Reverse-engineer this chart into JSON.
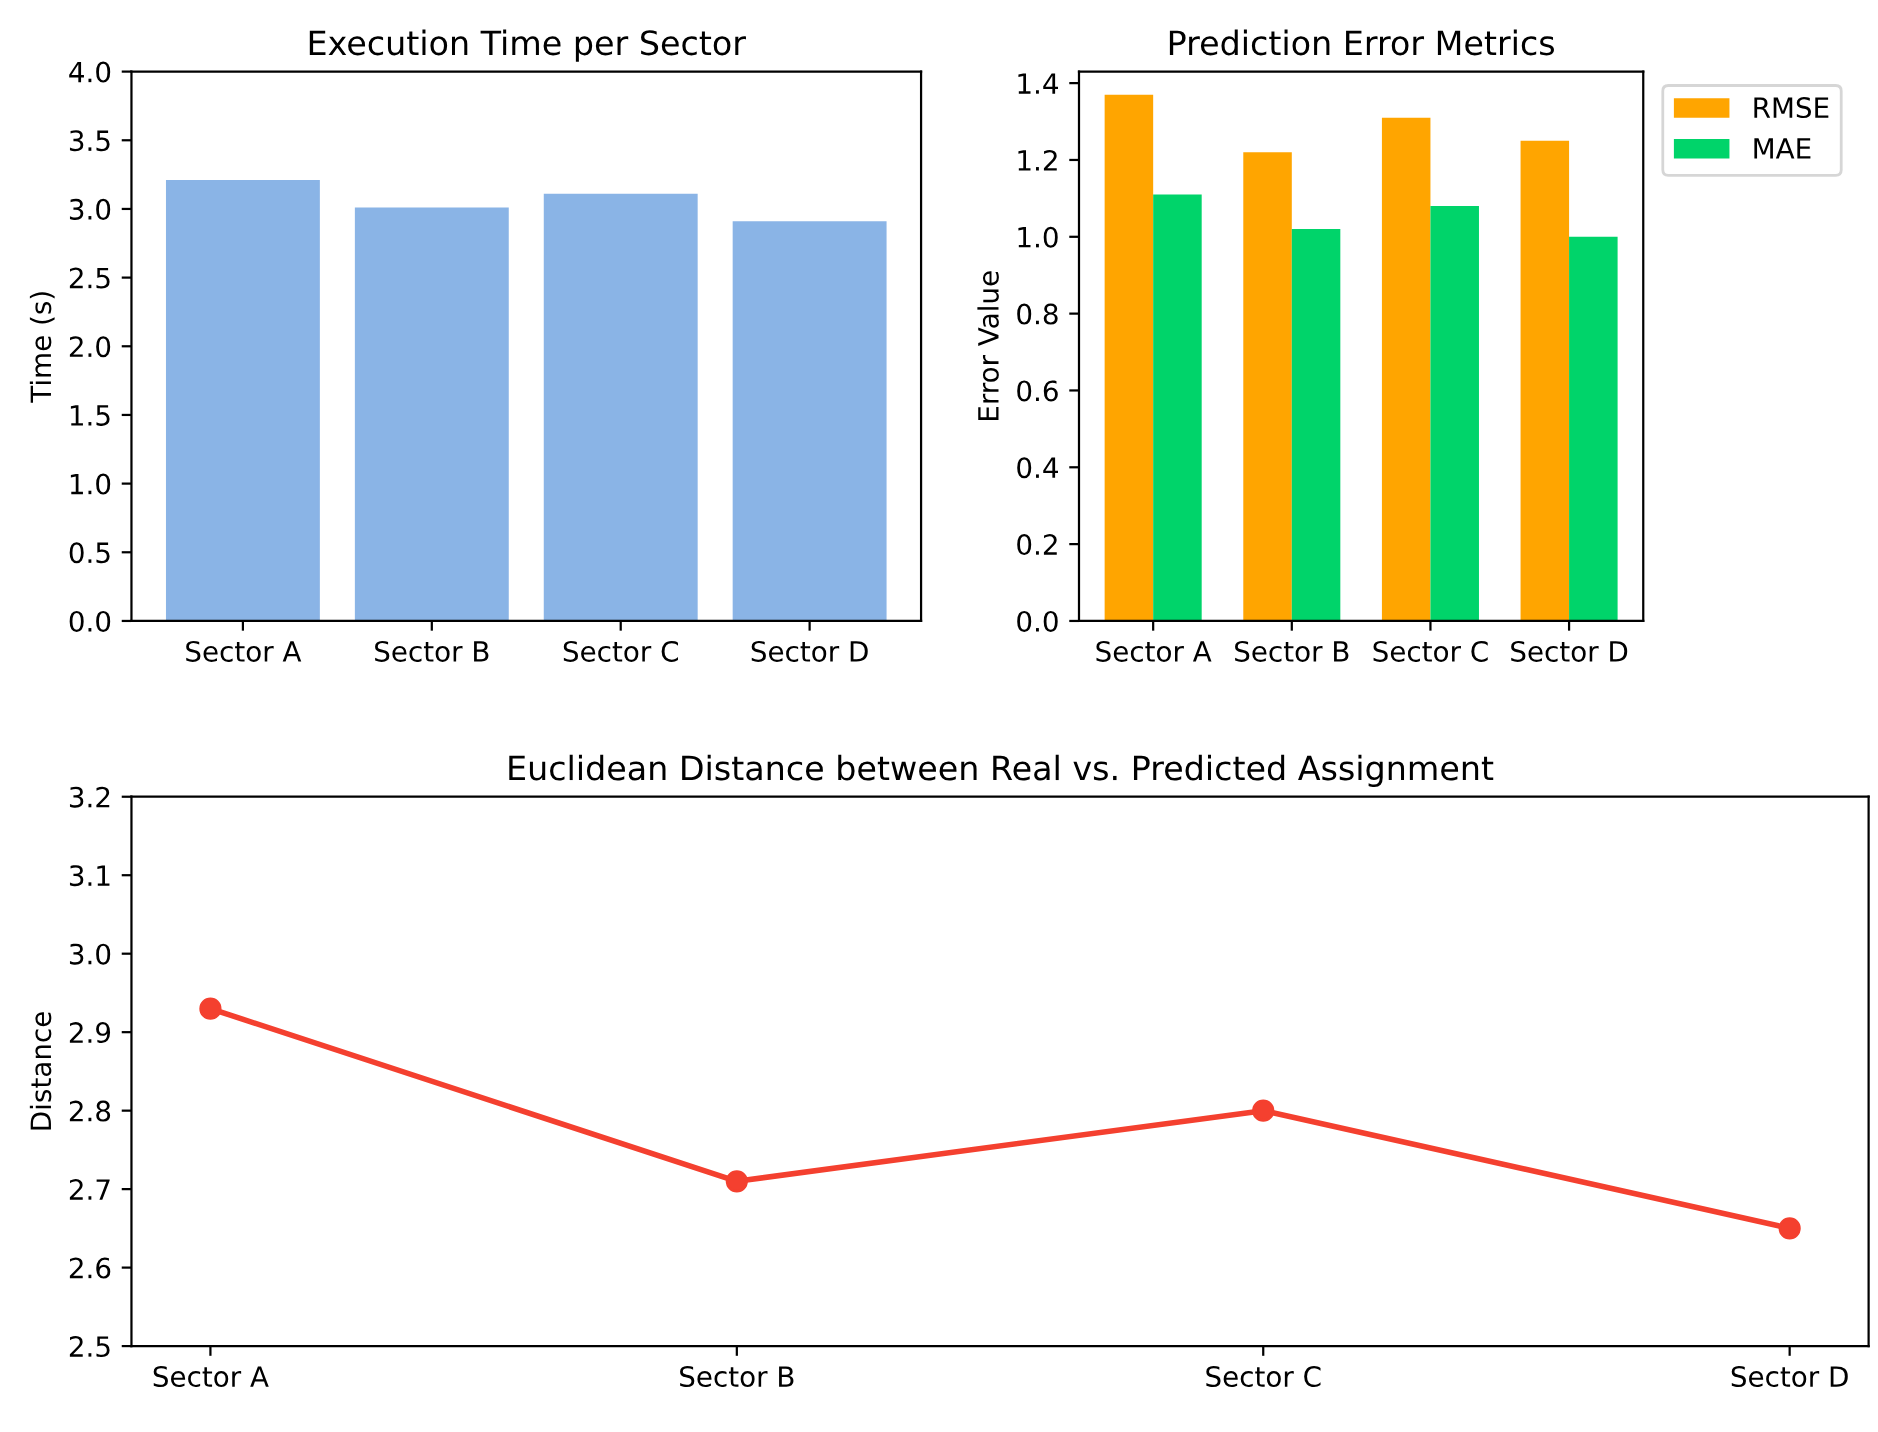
{
  "chart_data": [
    {
      "type": "bar",
      "title": "Execution Time per Sector",
      "ylabel": "Time (s)",
      "categories": [
        "Sector A",
        "Sector B",
        "Sector C",
        "Sector D"
      ],
      "values": [
        3.2,
        3.0,
        3.1,
        2.9
      ],
      "color": "#8ab4e6",
      "ylim": [
        0,
        4.0
      ],
      "yticks": [
        {
          "value": 0,
          "label": "0.0"
        },
        {
          "value": 0.5,
          "label": "0.5"
        },
        {
          "value": 1.0,
          "label": "1.0"
        },
        {
          "value": 1.5,
          "label": "1.5"
        },
        {
          "value": 2.0,
          "label": "2.0"
        },
        {
          "value": 2.5,
          "label": "2.5"
        },
        {
          "value": 3.0,
          "label": "3.0"
        },
        {
          "value": 3.5,
          "label": "3.5"
        },
        {
          "value": 4.0,
          "label": "4.0"
        }
      ],
      "grid": false
    },
    {
      "type": "bar",
      "title": "Prediction Error Metrics",
      "ylabel": "Error Value",
      "categories": [
        "Sector A",
        "Sector B",
        "Sector C",
        "Sector D"
      ],
      "series": [
        {
          "name": "RMSE",
          "color": "#ffa500",
          "values": [
            1.37,
            1.22,
            1.31,
            1.25
          ]
        },
        {
          "name": "MAE",
          "color": "#00d46a",
          "values": [
            1.11,
            1.02,
            1.08,
            1.0
          ]
        }
      ],
      "ylim": [
        0,
        1.43
      ],
      "yticks": [
        {
          "value": 0,
          "label": "0.0"
        },
        {
          "value": 0.2,
          "label": "0.2"
        },
        {
          "value": 0.4,
          "label": "0.4"
        },
        {
          "value": 0.6,
          "label": "0.6"
        },
        {
          "value": 0.8,
          "label": "0.8"
        },
        {
          "value": 1.0,
          "label": "1.0"
        },
        {
          "value": 1.2,
          "label": "1.2"
        },
        {
          "value": 1.4,
          "label": "1.4"
        }
      ],
      "legend": "top right",
      "grid": false
    },
    {
      "type": "line",
      "title": "Euclidean Distance between Real vs. Predicted Assignment",
      "ylabel": "Distance",
      "categories": [
        "Sector A",
        "Sector B",
        "Sector C",
        "Sector D"
      ],
      "values": [
        2.93,
        2.71,
        2.8,
        2.65
      ],
      "color": "#f4402f",
      "marker": "circle",
      "line_style": "solid",
      "ylim": [
        2.5,
        3.2
      ],
      "yticks": [
        {
          "value": 2.5,
          "label": "2.5"
        },
        {
          "value": 2.6,
          "label": "2.6"
        },
        {
          "value": 2.7,
          "label": "2.7"
        },
        {
          "value": 2.8,
          "label": "2.8"
        },
        {
          "value": 2.9,
          "label": "2.9"
        },
        {
          "value": 3.0,
          "label": "3.0"
        },
        {
          "value": 3.1,
          "label": "3.1"
        },
        {
          "value": 3.2,
          "label": "3.2"
        }
      ],
      "grid": false
    }
  ]
}
